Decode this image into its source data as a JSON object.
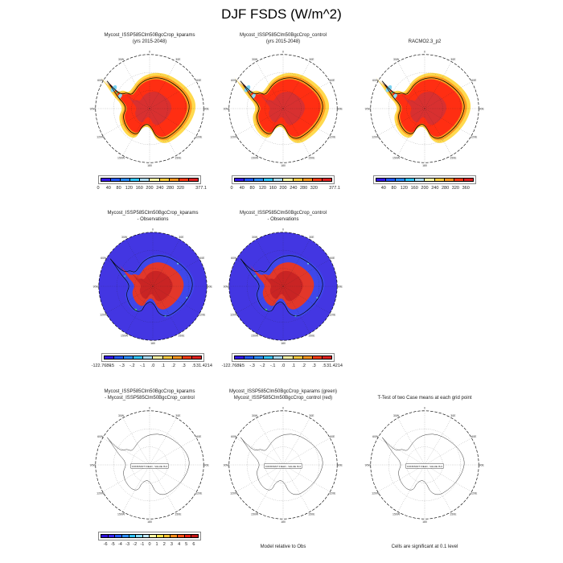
{
  "title": "DJF FSDS (W/m^2)",
  "panels": [
    {
      "title1": "Mycost_ISSP585Clm50BgcCrop_kparams",
      "title2": "(yrs 2015-2048)"
    },
    {
      "title1": "Mycost_ISSP585Clm50BgcCrop_control",
      "title2": "(yrs 2015-2048)"
    },
    {
      "title1": "",
      "title2": "RACMO2.3_p2"
    },
    {
      "title1": "Mycost_ISSP585Clm50BgcCrop_kparams",
      "title2": "- Observations"
    },
    {
      "title1": "Mycost_ISSP585Clm50BgcCrop_control",
      "title2": "- Observations"
    },
    {
      "title1": "Mycost_ISSP585Clm50BgcCrop_kparams",
      "title2": "- Mycost_ISSP585Clm50BgcCrop_control"
    },
    {
      "title1": "Mycost_ISSP585Clm50BgcCrop_kparams (green)",
      "title2": "Mycost_ISSP585Clm50BgcCrop_control (red)"
    },
    {
      "title1": "",
      "title2": "T-Test of two Case means at each grid point"
    }
  ],
  "captions": {
    "model_rel": "Model relative to Obs",
    "cells_sig": "Cells are significant at 0.1 level"
  },
  "map": {
    "meridian_labels": [
      "0",
      "30E",
      "60E",
      "90E",
      "120E",
      "150E",
      "180",
      "150W",
      "120W",
      "90W",
      "60W",
      "30W"
    ],
    "constant_label": "CONSTANT FIELD - VALUE IS 0"
  },
  "colorbars": {
    "fsds": {
      "colors": [
        "#3318e8",
        "#2257ff",
        "#2b8cff",
        "#33c4ff",
        "#a9daf2",
        "#fdf7a2",
        "#ffc93e",
        "#ff9420",
        "#ff3a16",
        "#de2020"
      ],
      "labels": [
        {
          "t": "0",
          "p": 0
        },
        {
          "t": "40",
          "p": 0.1
        },
        {
          "t": "80",
          "p": 0.2
        },
        {
          "t": "120",
          "p": 0.3
        },
        {
          "t": "160",
          "p": 0.4
        },
        {
          "t": "200",
          "p": 0.5
        },
        {
          "t": "240",
          "p": 0.6
        },
        {
          "t": "280",
          "p": 0.7
        },
        {
          "t": "320",
          "p": 0.8
        },
        {
          "t": "377.1",
          "p": 1
        }
      ]
    },
    "racmo": {
      "colors": [
        "#3318e8",
        "#2257ff",
        "#2b8cff",
        "#33c4ff",
        "#a9daf2",
        "#fdf7a2",
        "#ffc93e",
        "#ff9420",
        "#ff3a16",
        "#de2020"
      ],
      "labels": [
        {
          "t": "40",
          "p": 0.1
        },
        {
          "t": "80",
          "p": 0.2
        },
        {
          "t": "120",
          "p": 0.3
        },
        {
          "t": "160",
          "p": 0.4
        },
        {
          "t": "200",
          "p": 0.5
        },
        {
          "t": "240",
          "p": 0.6
        },
        {
          "t": "280",
          "p": 0.7
        },
        {
          "t": "320",
          "p": 0.8
        },
        {
          "t": "360",
          "p": 0.9
        }
      ]
    },
    "diff": {
      "colors": [
        "#3318e8",
        "#2257ff",
        "#2b8cff",
        "#33c4ff",
        "#a9daf2",
        "#fdf7a2",
        "#ffc93e",
        "#ff9420",
        "#ff3a16",
        "#de2020"
      ],
      "labels": [
        {
          "t": "-122.7689",
          "p": 0
        },
        {
          "t": "-.5",
          "p": 0.1
        },
        {
          "t": "-.3",
          "p": 0.2
        },
        {
          "t": "-.2",
          "p": 0.3
        },
        {
          "t": "-.1",
          "p": 0.4
        },
        {
          "t": ".0",
          "p": 0.5
        },
        {
          "t": ".1",
          "p": 0.6
        },
        {
          "t": ".2",
          "p": 0.7
        },
        {
          "t": ".3",
          "p": 0.8
        },
        {
          "t": ".5",
          "p": 0.9
        },
        {
          "t": "31.4214",
          "p": 1
        }
      ]
    },
    "tdiff": {
      "colors": [
        "#2c0fd8",
        "#3823f2",
        "#2257ff",
        "#2b8cff",
        "#2fc3ff",
        "#86dcf8",
        "#bfe7f7",
        "#fdf7a2",
        "#ffe34a",
        "#ffc02e",
        "#ff8c1a",
        "#ff4f12",
        "#ea1e10",
        "#c41414"
      ],
      "labels": [
        {
          "t": "-6",
          "p": 0.071
        },
        {
          "t": "-5",
          "p": 0.143
        },
        {
          "t": "-4",
          "p": 0.214
        },
        {
          "t": "-3",
          "p": 0.286
        },
        {
          "t": "-2",
          "p": 0.357
        },
        {
          "t": "-1",
          "p": 0.429
        },
        {
          "t": "0",
          "p": 0.5
        },
        {
          "t": "1",
          "p": 0.571
        },
        {
          "t": "2",
          "p": 0.643
        },
        {
          "t": "3",
          "p": 0.714
        },
        {
          "t": "4",
          "p": 0.786
        },
        {
          "t": "5",
          "p": 0.857
        },
        {
          "t": "6",
          "p": 0.929
        }
      ]
    }
  },
  "chart_data": [
    {
      "type": "heatmap",
      "panel": "top-left",
      "title": "Mycost_ISSP585Clm50BgcCrop_kparams (yrs 2015-2048)",
      "variable": "DJF FSDS",
      "units": "W/m^2",
      "projection": "south polar stereographic (Antarctica)",
      "colorbar_ticks": [
        0,
        40,
        80,
        120,
        160,
        200,
        240,
        280,
        320,
        377.1
      ],
      "palette": [
        "#3318e8",
        "#2257ff",
        "#2b8cff",
        "#33c4ff",
        "#a9daf2",
        "#fdf7a2",
        "#ffc93e",
        "#ff9420",
        "#ff3a16",
        "#de2020"
      ],
      "summary": "High FSDS (red ~280-377 W/m^2) over interior Antarctica, orange/yellow (~160-240) near coasts, blue patches (~40-120) along Antarctic Peninsula"
    },
    {
      "type": "heatmap",
      "panel": "top-middle",
      "title": "Mycost_ISSP585Clm50BgcCrop_control (yrs 2015-2048)",
      "variable": "DJF FSDS",
      "units": "W/m^2",
      "projection": "south polar stereographic (Antarctica)",
      "colorbar_ticks": [
        0,
        40,
        80,
        120,
        160,
        200,
        240,
        280,
        320,
        377.1
      ],
      "summary": "Nearly identical pattern to kparams case"
    },
    {
      "type": "heatmap",
      "panel": "top-right",
      "title": "RACMO2.3_p2",
      "variable": "DJF FSDS",
      "units": "W/m^2",
      "projection": "south polar stereographic (Antarctica)",
      "colorbar_ticks": [
        40,
        80,
        120,
        160,
        200,
        240,
        280,
        320,
        360
      ],
      "summary": "Reference reanalysis field, red interior, orange coastal band"
    },
    {
      "type": "heatmap",
      "panel": "middle-left",
      "title": "Mycost_ISSP585Clm50BgcCrop_kparams - Observations",
      "variable": "DJF FSDS bias",
      "units": "W/m^2",
      "colorbar_ticks": [
        -122.7689,
        -0.5,
        -0.3,
        -0.2,
        -0.1,
        0,
        0.1,
        0.2,
        0.3,
        0.5,
        31.4214
      ],
      "summary": "Negative bias (blue/violet) over ocean and coastal Antarctica, positive bias (red) over central interior"
    },
    {
      "type": "heatmap",
      "panel": "middle-right",
      "title": "Mycost_ISSP585Clm50BgcCrop_control - Observations",
      "variable": "DJF FSDS bias",
      "units": "W/m^2",
      "colorbar_ticks": [
        -122.7689,
        -0.5,
        -0.3,
        -0.2,
        -0.1,
        0,
        0.1,
        0.2,
        0.3,
        0.5,
        31.4214
      ],
      "summary": "Same bias pattern as kparams case"
    },
    {
      "type": "heatmap",
      "panel": "bottom-left",
      "title": "Mycost_ISSP585Clm50BgcCrop_kparams - Mycost_ISSP585Clm50BgcCrop_control",
      "variable": "DJF FSDS difference",
      "units": "W/m^2",
      "colorbar_ticks": [
        -6,
        -5,
        -4,
        -3,
        -2,
        -1,
        0,
        1,
        2,
        3,
        4,
        5,
        6
      ],
      "annotation": "CONSTANT FIELD - VALUE IS 0",
      "summary": "Zero everywhere (constant field)"
    },
    {
      "type": "heatmap",
      "panel": "bottom-middle",
      "title": "Mycost_ISSP585Clm50BgcCrop_kparams (green) / Mycost_ISSP585Clm50BgcCrop_control (red)",
      "annotation": "CONSTANT FIELD - VALUE IS 0",
      "caption": "Model relative to Obs",
      "summary": "Outline map only, no shading"
    },
    {
      "type": "heatmap",
      "panel": "bottom-right",
      "title": "T-Test of two Case means at each grid point",
      "annotation": "CONSTANT FIELD - VALUE IS 0",
      "caption": "Cells are significant at 0.1 level",
      "summary": "Outline map only, no significant cells shaded"
    }
  ]
}
